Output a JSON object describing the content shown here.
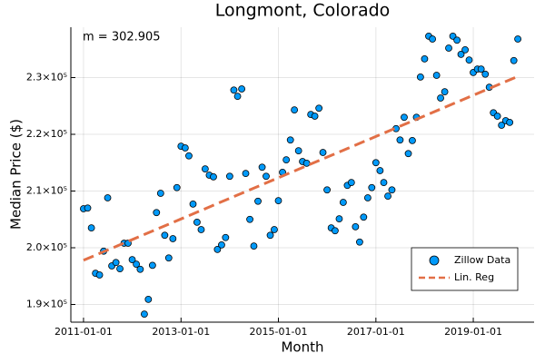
{
  "chart_data": {
    "type": "scatter",
    "title": "Longmont, Colorado",
    "x_label": "Month",
    "y_label": "Median Price ($)",
    "annotation": "m = 302.905",
    "xlim": [
      "2010-09-28",
      "2020-04-01"
    ],
    "xticks": [
      "2011-01-01",
      "2013-01-01",
      "2015-01-01",
      "2017-01-01",
      "2019-01-01"
    ],
    "ylim": [
      186880,
      238880
    ],
    "yticks": [
      {
        "value": 190000,
        "label": "1.9×10⁵"
      },
      {
        "value": 200000,
        "label": "2.0×10⁵"
      },
      {
        "value": 210000,
        "label": "2.1×10⁵"
      },
      {
        "value": 220000,
        "label": "2.2×10⁵"
      },
      {
        "value": 230000,
        "label": "2.3×10⁵"
      }
    ],
    "grid": true,
    "legend": "bottom-right",
    "series": [
      {
        "name": "Zillow Data",
        "color": "#009afa",
        "mode": "markers",
        "x": [
          "2011-01-01",
          "2011-02-01",
          "2011-03-01",
          "2011-04-01",
          "2011-05-01",
          "2011-06-01",
          "2011-07-01",
          "2011-08-01",
          "2011-09-01",
          "2011-10-01",
          "2011-11-01",
          "2011-12-01",
          "2012-01-01",
          "2012-02-01",
          "2012-03-01",
          "2012-04-01",
          "2012-05-01",
          "2012-06-01",
          "2012-07-01",
          "2012-08-01",
          "2012-09-01",
          "2012-10-01",
          "2012-11-01",
          "2012-12-01",
          "2013-01-01",
          "2013-02-01",
          "2013-03-01",
          "2013-04-01",
          "2013-05-01",
          "2013-06-01",
          "2013-07-01",
          "2013-08-01",
          "2013-09-01",
          "2013-10-01",
          "2013-11-01",
          "2013-12-01",
          "2014-01-01",
          "2014-02-01",
          "2014-03-01",
          "2014-04-01",
          "2014-05-01",
          "2014-06-01",
          "2014-07-01",
          "2014-08-01",
          "2014-09-01",
          "2014-10-01",
          "2014-11-01",
          "2014-12-01",
          "2015-01-01",
          "2015-02-01",
          "2015-03-01",
          "2015-04-01",
          "2015-05-01",
          "2015-06-01",
          "2015-07-01",
          "2015-08-01",
          "2015-09-01",
          "2015-10-01",
          "2015-11-01",
          "2015-12-01",
          "2016-01-01",
          "2016-02-01",
          "2016-03-01",
          "2016-04-01",
          "2016-05-01",
          "2016-06-01",
          "2016-07-01",
          "2016-08-01",
          "2016-09-01",
          "2016-10-01",
          "2016-11-01",
          "2016-12-01",
          "2017-01-01",
          "2017-02-01",
          "2017-03-01",
          "2017-04-01",
          "2017-05-01",
          "2017-06-01",
          "2017-07-01",
          "2017-08-01",
          "2017-09-01",
          "2017-10-01",
          "2017-11-01",
          "2017-12-01",
          "2018-01-01",
          "2018-02-01",
          "2018-03-01",
          "2018-04-01",
          "2018-05-01",
          "2018-06-01",
          "2018-07-01",
          "2018-08-01",
          "2018-09-01",
          "2018-10-01",
          "2018-11-01",
          "2018-12-01",
          "2019-01-01",
          "2019-02-01",
          "2019-03-01",
          "2019-04-01",
          "2019-05-01",
          "2019-06-01",
          "2019-07-01",
          "2019-08-01",
          "2019-09-01",
          "2019-10-01",
          "2019-11-01",
          "2019-12-01"
        ],
        "values": [
          206880,
          207000,
          203500,
          195500,
          195200,
          199400,
          208800,
          196800,
          197400,
          196300,
          200800,
          200800,
          197900,
          197100,
          196200,
          188300,
          190900,
          196900,
          206200,
          209600,
          202200,
          198200,
          201600,
          210600,
          217900,
          217600,
          216200,
          207700,
          204500,
          203200,
          213900,
          212800,
          212500,
          199700,
          200500,
          201800,
          212600,
          227800,
          226700,
          228000,
          213100,
          205000,
          200300,
          208200,
          214200,
          212600,
          202200,
          203200,
          208300,
          213300,
          215500,
          219000,
          224300,
          217100,
          215200,
          214900,
          223500,
          223200,
          224600,
          216800,
          210200,
          203500,
          203000,
          205100,
          208000,
          211000,
          211500,
          203700,
          201000,
          205400,
          208800,
          210600,
          215000,
          213600,
          211500,
          209100,
          210200,
          221000,
          219000,
          223000,
          216600,
          218900,
          223000,
          230100,
          233300,
          237300,
          236800,
          230400,
          226400,
          227500,
          235200,
          237300,
          236600,
          234100,
          234900,
          233100,
          230900,
          231500,
          231500,
          230600,
          228300,
          223800,
          223200,
          221600,
          222400,
          222100,
          233000,
          236800
        ]
      },
      {
        "name": "Lin. Reg",
        "color": "#e26f46",
        "mode": "dashed-line",
        "x": [
          "2011-01-01",
          "2019-12-01"
        ],
        "values": [
          197800,
          230211
        ]
      }
    ]
  }
}
